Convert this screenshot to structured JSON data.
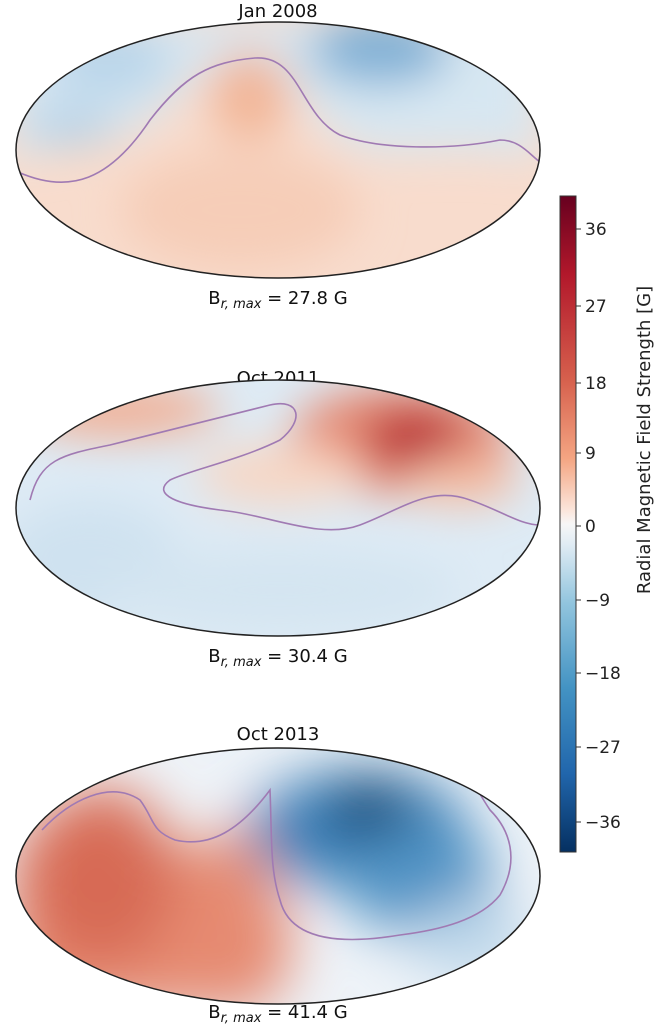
{
  "panels": [
    {
      "title": "Jan 2008",
      "caption": {
        "symbol": "B",
        "subscript": "r, max",
        "rest": " = 27.8 G"
      }
    },
    {
      "title": "Oct 2011",
      "caption": {
        "symbol": "B",
        "subscript": "r, max",
        "rest": " = 30.4 G"
      }
    },
    {
      "title": "Oct 2013",
      "caption": {
        "symbol": "B",
        "subscript": "r, max",
        "rest": " = 41.4 G"
      }
    }
  ],
  "colorbar": {
    "label": "Radial Magnetic Field Strength [G]",
    "ticks": [
      "36",
      "27",
      "18",
      "9",
      "0",
      "−9",
      "−18",
      "−27",
      "−36"
    ],
    "colors": {
      "max": "#67001f",
      "pos": "#d6604d",
      "mid": "#f7f7f7",
      "neg": "#4393c3",
      "min": "#053061"
    }
  }
}
